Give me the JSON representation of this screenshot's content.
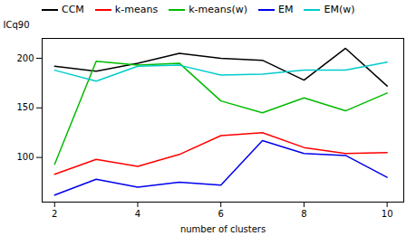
{
  "chart_data": {
    "type": "line",
    "x": [
      2,
      3,
      4,
      5,
      6,
      7,
      8,
      9,
      10
    ],
    "series": [
      {
        "name": "CCM",
        "color": "#000000",
        "values": [
          192,
          187,
          195,
          205,
          200,
          198,
          178,
          210,
          172
        ]
      },
      {
        "name": "k-means",
        "color": "#ff0000",
        "values": [
          83,
          98,
          91,
          103,
          122,
          125,
          110,
          104,
          105
        ]
      },
      {
        "name": "k-means(w)",
        "color": "#00bb00",
        "values": [
          93,
          197,
          193,
          195,
          157,
          145,
          160,
          147,
          165
        ]
      },
      {
        "name": "EM",
        "color": "#0000ee",
        "values": [
          62,
          78,
          70,
          75,
          72,
          117,
          104,
          102,
          80
        ]
      },
      {
        "name": "EM(w)",
        "color": "#00cccc",
        "values": [
          188,
          177,
          192,
          193,
          183,
          184,
          188,
          188,
          196
        ]
      }
    ],
    "xlabel": "number of clusters",
    "ylabel": "ICq90",
    "xlim": [
      1.7,
      10.4
    ],
    "ylim": [
      55,
      220
    ],
    "xticks": [
      2,
      4,
      6,
      8,
      10
    ],
    "yticks": [
      100,
      150,
      200
    ],
    "legend": "upper left"
  }
}
